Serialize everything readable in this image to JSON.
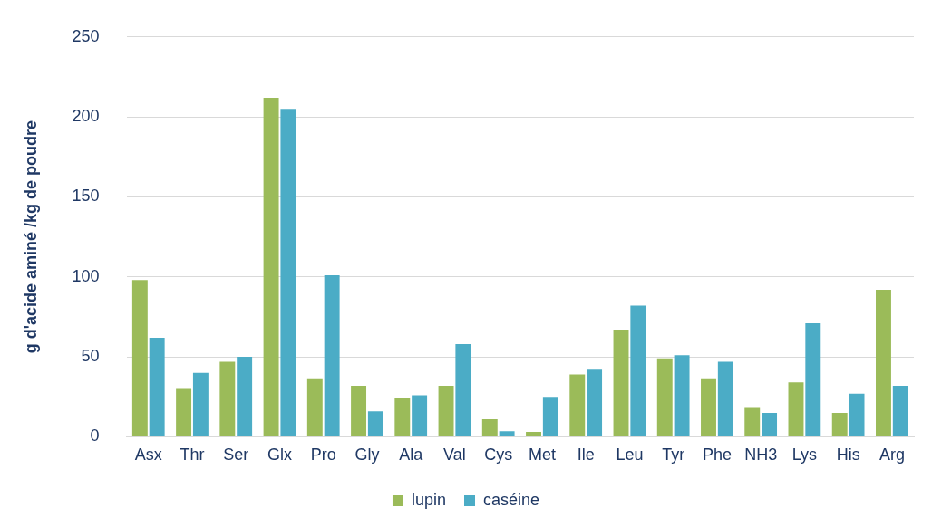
{
  "chart_data": {
    "type": "bar",
    "ylabel": "g d'acide aminé /kg de poudre",
    "categories": [
      "Asx",
      "Thr",
      "Ser",
      "Glx",
      "Pro",
      "Gly",
      "Ala",
      "Val",
      "Cys",
      "Met",
      "Ile",
      "Leu",
      "Tyr",
      "Phe",
      "NH3",
      "Lys",
      "His",
      "Arg"
    ],
    "series": [
      {
        "name": "lupin",
        "color": "#9bbb59",
        "values": [
          98,
          30,
          47,
          212,
          36,
          32,
          24,
          32,
          11,
          3,
          39,
          67,
          49,
          36,
          18,
          34,
          15,
          92
        ]
      },
      {
        "name": "caséine",
        "color": "#4bacc6",
        "values": [
          62,
          40,
          50,
          205,
          101,
          16,
          26,
          58,
          3.5,
          25,
          42,
          82,
          51,
          47,
          15,
          71,
          27,
          32
        ]
      }
    ],
    "ylim": [
      0,
      250
    ],
    "yticks": [
      0,
      50,
      100,
      150,
      200,
      250
    ],
    "grid": "y",
    "legend": "bottom"
  }
}
